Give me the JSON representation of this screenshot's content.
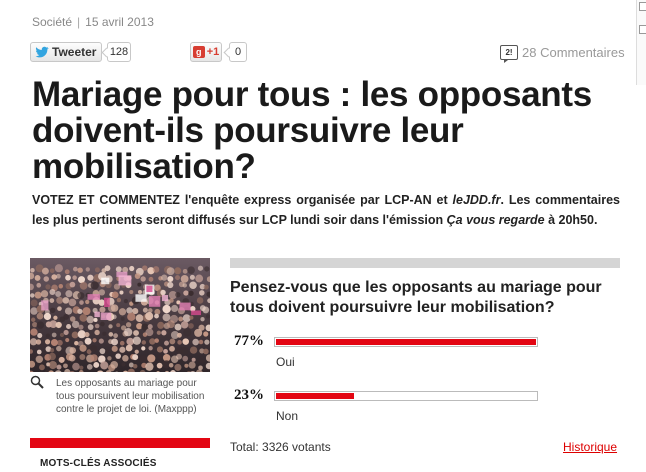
{
  "meta": {
    "category": "Société",
    "separator": "|",
    "date": "15 avril 2013"
  },
  "social": {
    "tweet_label": "Tweeter",
    "tweet_count": "128",
    "gplus_label": "+1",
    "gplus_count": "0",
    "comments_label": "28 Commentaires"
  },
  "title": "Mariage pour tous : les opposants doivent-ils poursuivre leur mobilisation?",
  "intro": {
    "part1": "VOTEZ ET COMMENTEZ l'enquête express organisée par LCP-AN et ",
    "site": "leJDD.fr",
    "part2": ". Les commentaires les plus pertinents seront diffusés sur LCP lundi soir dans l'émission ",
    "show": "Ça vous regarde",
    "part3": " à 20h50."
  },
  "photo": {
    "caption": "Les opposants au mariage pour tous poursuivent leur mobilisation contre le projet de loi. (Maxppp)"
  },
  "sidebar": {
    "tags_heading": "MOTS-CLÉS ASSOCIÉS"
  },
  "poll": {
    "question": "Pensez-vous que les opposants au mariage pour tous doivent poursuivre leur mobilisation?",
    "options": [
      {
        "percent_label": "77%",
        "percent": 77,
        "label": "Oui"
      },
      {
        "percent_label": "23%",
        "percent": 23,
        "label": "Non"
      }
    ],
    "total": "Total:  3326 votants",
    "history_link": "Historique"
  },
  "colors": {
    "accent_red": "#e30613",
    "poll_bar_gray": "#d5d5d5",
    "link_red": "#dd0000"
  }
}
